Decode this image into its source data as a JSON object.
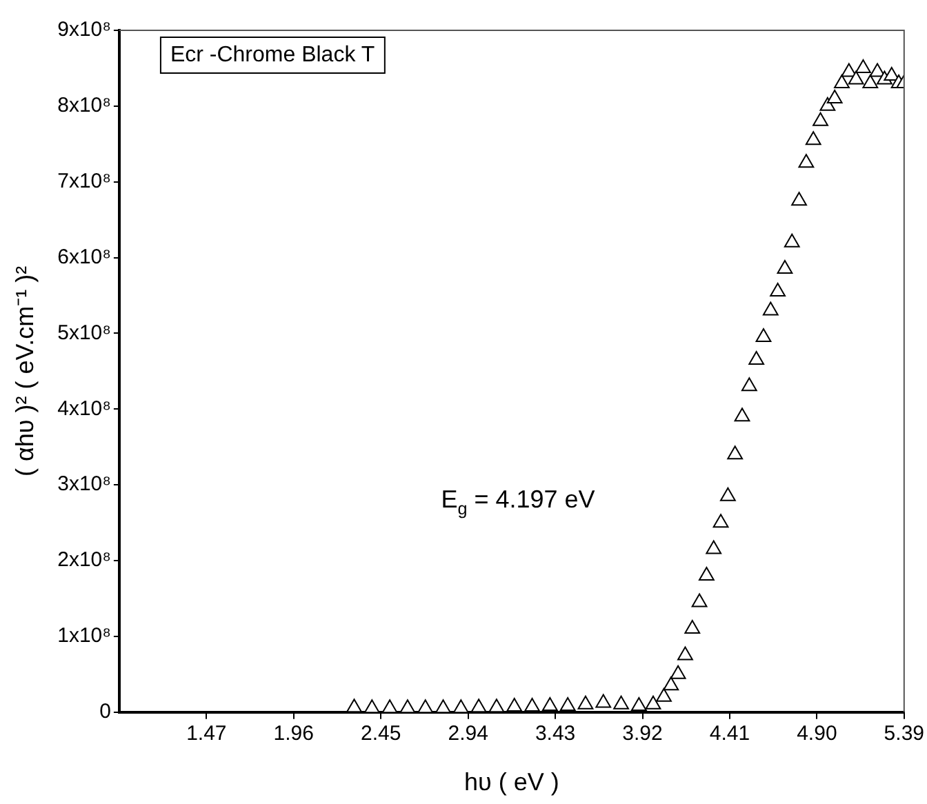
{
  "chart_data": {
    "type": "scatter",
    "title": "Ecr -Chrome Black T",
    "xlabel": "hυ ( eV )",
    "ylabel": "( αhυ )² ( eV.cm⁻¹ )²",
    "annotations": [
      "E$_{g}$ = 4.197 eV"
    ],
    "marker": "triangle",
    "grid": false,
    "legend": false,
    "xlim": [
      0.98,
      5.39
    ],
    "xticks": [
      1.47,
      1.96,
      2.45,
      2.94,
      3.43,
      3.92,
      4.41,
      {
        "value": 4.9,
        "label": "4.90"
      },
      5.39
    ],
    "ylim": [
      0,
      900000000
    ],
    "yticks": [
      {
        "value": 0,
        "label": "0"
      },
      {
        "value": 100000000,
        "label": "1x10⁸"
      },
      {
        "value": 200000000,
        "label": "2x10⁸"
      },
      {
        "value": 300000000,
        "label": "3x10⁸"
      },
      {
        "value": 400000000,
        "label": "4x10⁸"
      },
      {
        "value": 500000000,
        "label": "5x10⁸"
      },
      {
        "value": 600000000,
        "label": "6x10⁸"
      },
      {
        "value": 700000000,
        "label": "7x10⁸"
      },
      {
        "value": 800000000,
        "label": "8x10⁸"
      },
      {
        "value": 900000000,
        "label": "9x10⁸"
      }
    ],
    "series": [
      {
        "color": "#000000",
        "x": [
          2.3,
          2.4,
          2.5,
          2.6,
          2.7,
          2.8,
          2.9,
          3.0,
          3.1,
          3.2,
          3.3,
          3.4,
          3.5,
          3.6,
          3.7,
          3.8,
          3.9,
          3.98,
          4.04,
          4.08,
          4.12,
          4.16,
          4.2,
          4.24,
          4.28,
          4.32,
          4.36,
          4.4,
          4.44,
          4.48,
          4.52,
          4.56,
          4.6,
          4.64,
          4.68,
          4.72,
          4.76,
          4.8,
          4.84,
          4.88,
          4.92,
          4.96,
          5.0,
          5.04,
          5.08,
          5.12,
          5.16,
          5.2,
          5.24,
          5.28,
          5.32,
          5.36,
          5.39
        ],
        "values": [
          6000000,
          5000000,
          5000000,
          5000000,
          5000000,
          5000000,
          5000000,
          6000000,
          6000000,
          7000000,
          7000000,
          8000000,
          8000000,
          10000000,
          12000000,
          10000000,
          8000000,
          10000000,
          20000000,
          35000000,
          50000000,
          75000000,
          110000000,
          145000000,
          180000000,
          215000000,
          250000000,
          285000000,
          340000000,
          390000000,
          430000000,
          465000000,
          495000000,
          530000000,
          555000000,
          585000000,
          620000000,
          675000000,
          725000000,
          755000000,
          780000000,
          800000000,
          810000000,
          830000000,
          845000000,
          835000000,
          850000000,
          830000000,
          845000000,
          835000000,
          840000000,
          830000000,
          830000000
        ]
      }
    ]
  }
}
